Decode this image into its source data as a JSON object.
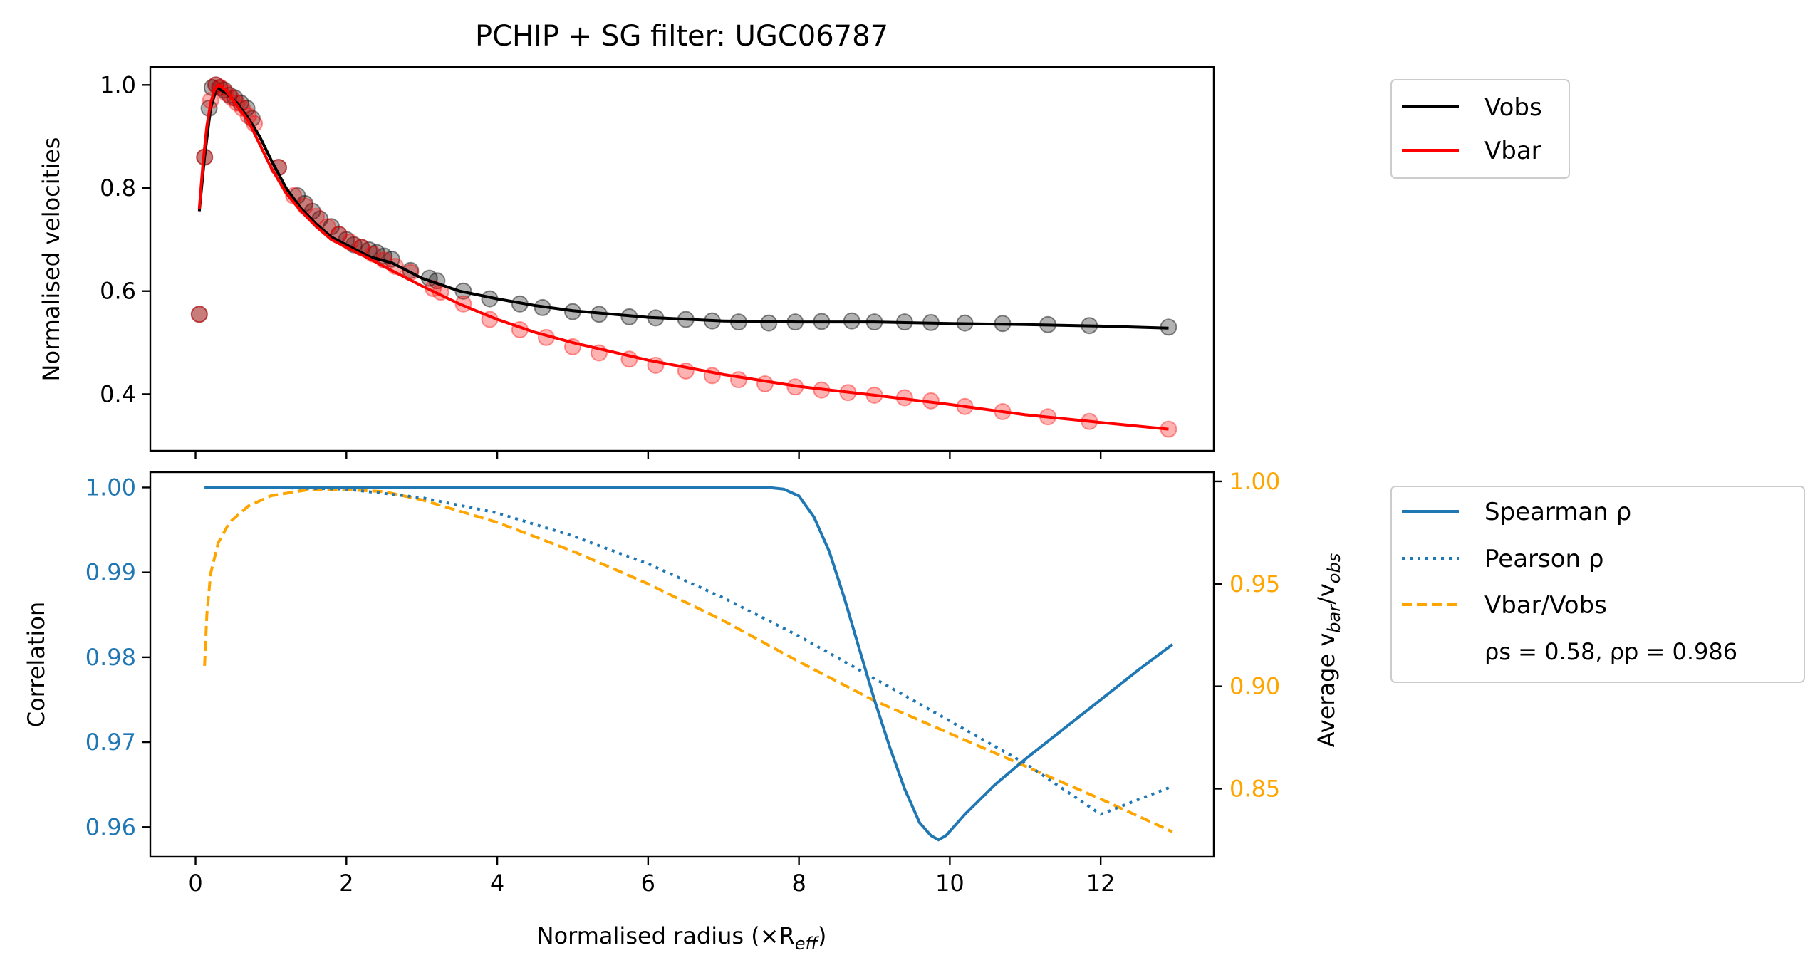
{
  "chart_data": [
    {
      "type": "line",
      "title": "PCHIP + SG filter: UGC06787",
      "ylabel": "Normalised velocities",
      "xlim": [
        -0.6,
        13.5
      ],
      "ylim": [
        0.29,
        1.035
      ],
      "yticks": [
        "0.4",
        "0.6",
        "0.8",
        "1.0"
      ],
      "yticks_values": [
        0.4,
        0.6,
        0.8,
        1.0
      ],
      "xticks_values": [
        0,
        2,
        4,
        6,
        8,
        10,
        12
      ],
      "legend": [
        {
          "name": "Vobs",
          "color": "#000000"
        },
        {
          "name": "Vbar",
          "color": "#ff0000"
        }
      ],
      "legend_placement": "outside-top-right",
      "series": [
        {
          "name": "Vobs",
          "color": "#000000",
          "line_x": [
            0.05,
            0.12,
            0.2,
            0.28,
            0.4,
            0.55,
            0.7,
            0.85,
            1.0,
            1.2,
            1.4,
            1.6,
            1.8,
            2.0,
            2.3,
            2.6,
            3.0,
            3.5,
            4.0,
            4.5,
            5.0,
            6.0,
            7.0,
            8.0,
            9.0,
            10.0,
            11.0,
            12.0,
            12.9
          ],
          "line_y": [
            0.755,
            0.86,
            0.955,
            0.995,
            0.985,
            0.965,
            0.935,
            0.9,
            0.855,
            0.8,
            0.76,
            0.73,
            0.705,
            0.69,
            0.667,
            0.655,
            0.625,
            0.6,
            0.585,
            0.572,
            0.562,
            0.549,
            0.542,
            0.54,
            0.54,
            0.537,
            0.535,
            0.532,
            0.528
          ],
          "points_x": [
            0.05,
            0.12,
            0.18,
            0.22,
            0.27,
            0.32,
            0.38,
            0.45,
            0.52,
            0.6,
            0.68,
            0.75,
            1.1,
            1.35,
            1.45,
            1.55,
            1.65,
            1.8,
            1.9,
            2.0,
            2.1,
            2.2,
            2.3,
            2.4,
            2.5,
            2.6,
            2.85,
            3.1,
            3.2,
            3.55,
            3.9,
            4.3,
            4.6,
            5.0,
            5.35,
            5.75,
            6.1,
            6.5,
            6.85,
            7.2,
            7.6,
            7.95,
            8.3,
            8.7,
            9.0,
            9.4,
            9.75,
            10.2,
            10.7,
            11.3,
            11.85,
            12.9
          ],
          "points_y": [
            0.555,
            0.86,
            0.955,
            0.995,
            1.0,
            0.995,
            0.99,
            0.98,
            0.975,
            0.965,
            0.955,
            0.935,
            0.84,
            0.785,
            0.77,
            0.755,
            0.74,
            0.725,
            0.71,
            0.7,
            0.69,
            0.685,
            0.68,
            0.675,
            0.668,
            0.662,
            0.64,
            0.625,
            0.62,
            0.6,
            0.585,
            0.575,
            0.568,
            0.56,
            0.555,
            0.55,
            0.548,
            0.545,
            0.542,
            0.54,
            0.538,
            0.54,
            0.541,
            0.542,
            0.54,
            0.54,
            0.539,
            0.538,
            0.537,
            0.535,
            0.533,
            0.53
          ]
        },
        {
          "name": "Vbar",
          "color": "#ff0000",
          "line_x": [
            0.05,
            0.1,
            0.15,
            0.2,
            0.25,
            0.3,
            0.4,
            0.55,
            0.7,
            0.85,
            1.0,
            1.2,
            1.4,
            1.6,
            1.8,
            2.0,
            2.3,
            2.6,
            3.0,
            3.5,
            4.0,
            4.5,
            5.0,
            6.0,
            7.0,
            8.0,
            9.0,
            10.0,
            11.0,
            12.0,
            12.9
          ],
          "line_y": [
            0.76,
            0.85,
            0.92,
            0.965,
            0.99,
            1.0,
            0.99,
            0.96,
            0.93,
            0.885,
            0.84,
            0.79,
            0.755,
            0.725,
            0.7,
            0.685,
            0.663,
            0.64,
            0.61,
            0.575,
            0.545,
            0.52,
            0.5,
            0.466,
            0.438,
            0.415,
            0.398,
            0.38,
            0.36,
            0.345,
            0.332
          ]
        },
        {
          "name": "Vbar points",
          "color": "#ff0000",
          "points_x": [
            0.05,
            0.12,
            0.2,
            0.27,
            0.33,
            0.4,
            0.48,
            0.55,
            0.62,
            0.7,
            0.78,
            1.1,
            1.3,
            1.45,
            1.6,
            1.75,
            1.9,
            2.05,
            2.2,
            2.35,
            2.5,
            2.65,
            2.85,
            3.15,
            3.25,
            3.55,
            3.9,
            4.3,
            4.65,
            5.0,
            5.35,
            5.75,
            6.1,
            6.5,
            6.85,
            7.2,
            7.55,
            7.95,
            8.3,
            8.65,
            9.0,
            9.4,
            9.75,
            10.2,
            10.7,
            11.3,
            11.85,
            12.9
          ],
          "points_y": [
            0.555,
            0.86,
            0.97,
            1.0,
            0.995,
            0.985,
            0.975,
            0.965,
            0.955,
            0.94,
            0.925,
            0.84,
            0.785,
            0.765,
            0.745,
            0.725,
            0.71,
            0.695,
            0.685,
            0.672,
            0.66,
            0.648,
            0.636,
            0.605,
            0.598,
            0.575,
            0.545,
            0.525,
            0.51,
            0.492,
            0.48,
            0.468,
            0.456,
            0.445,
            0.436,
            0.428,
            0.42,
            0.414,
            0.408,
            0.403,
            0.398,
            0.393,
            0.387,
            0.376,
            0.366,
            0.356,
            0.347,
            0.332
          ]
        }
      ]
    },
    {
      "type": "line",
      "xlabel": "Normalised radius (×R",
      "xlabel_sub": "eff",
      "xlabel_end": ")",
      "ylabel": "Correlation",
      "ylabel_right_pre": "Average v",
      "ylabel_right_sub1": "bar",
      "ylabel_right_mid": "/v",
      "ylabel_right_sub2": "obs",
      "xlim": [
        -0.6,
        13.5
      ],
      "ylim": [
        0.9565,
        1.0018
      ],
      "ylim_right": [
        0.8168,
        1.0045
      ],
      "xticks": [
        "0",
        "2",
        "4",
        "6",
        "8",
        "10",
        "12"
      ],
      "xticks_values": [
        0,
        2,
        4,
        6,
        8,
        10,
        12
      ],
      "yticks": [
        "0.96",
        "0.97",
        "0.98",
        "0.99",
        "1.00"
      ],
      "yticks_values": [
        0.96,
        0.97,
        0.98,
        0.99,
        1.0
      ],
      "yticks_right": [
        "0.85",
        "0.90",
        "0.95",
        "1.00"
      ],
      "yticks_right_values": [
        0.85,
        0.9,
        0.95,
        1.0
      ],
      "left_axis_color": "#1f77b4",
      "right_axis_color": "#ffa500",
      "legend": [
        {
          "name": "Spearman ρ",
          "color": "#1f77b4",
          "style": "solid"
        },
        {
          "name": "Pearson ρ",
          "color": "#1f77b4",
          "style": "dotted"
        },
        {
          "name": "Vbar/Vobs",
          "color": "#ffa500",
          "style": "dashed"
        }
      ],
      "legend_note": "ρs = 0.58, ρp = 0.986",
      "legend_placement": "outside-right",
      "series": [
        {
          "name": "Spearman ρ",
          "axis": "left",
          "style": "solid",
          "x": [
            0.12,
            1.0,
            2.0,
            4.0,
            6.0,
            7.2,
            7.6,
            7.8,
            8.0,
            8.2,
            8.4,
            8.6,
            8.8,
            9.0,
            9.2,
            9.4,
            9.6,
            9.75,
            9.85,
            9.95,
            10.2,
            10.6,
            11.0,
            11.5,
            12.0,
            12.5,
            12.95
          ],
          "y": [
            1.0,
            1.0,
            1.0,
            1.0,
            1.0,
            1.0,
            1.0,
            0.9998,
            0.999,
            0.9965,
            0.9925,
            0.987,
            0.981,
            0.975,
            0.9695,
            0.9645,
            0.9605,
            0.959,
            0.9585,
            0.959,
            0.9615,
            0.965,
            0.968,
            0.9715,
            0.975,
            0.9785,
            0.9815
          ]
        },
        {
          "name": "Pearson ρ",
          "axis": "left",
          "style": "dotted",
          "x": [
            0.12,
            1.0,
            2.0,
            3.0,
            4.0,
            5.0,
            6.0,
            7.0,
            8.0,
            9.0,
            10.0,
            11.0,
            12.0,
            12.95
          ],
          "y": [
            1.0,
            1.0,
            0.9998,
            0.9988,
            0.997,
            0.9943,
            0.991,
            0.987,
            0.9825,
            0.9775,
            0.9725,
            0.9675,
            0.9615,
            0.9648
          ]
        },
        {
          "name": "Vbar/Vobs",
          "axis": "right",
          "style": "dashed",
          "x": [
            0.12,
            0.15,
            0.2,
            0.3,
            0.45,
            0.7,
            1.0,
            1.5,
            2.0,
            2.5,
            3.0,
            4.0,
            5.0,
            6.0,
            7.0,
            8.0,
            9.0,
            10.0,
            11.0,
            12.0,
            12.95
          ],
          "y": [
            0.91,
            0.935,
            0.955,
            0.97,
            0.98,
            0.988,
            0.993,
            0.996,
            0.996,
            0.995,
            0.991,
            0.98,
            0.966,
            0.95,
            0.932,
            0.912,
            0.893,
            0.877,
            0.861,
            0.845,
            0.829
          ]
        }
      ]
    }
  ]
}
